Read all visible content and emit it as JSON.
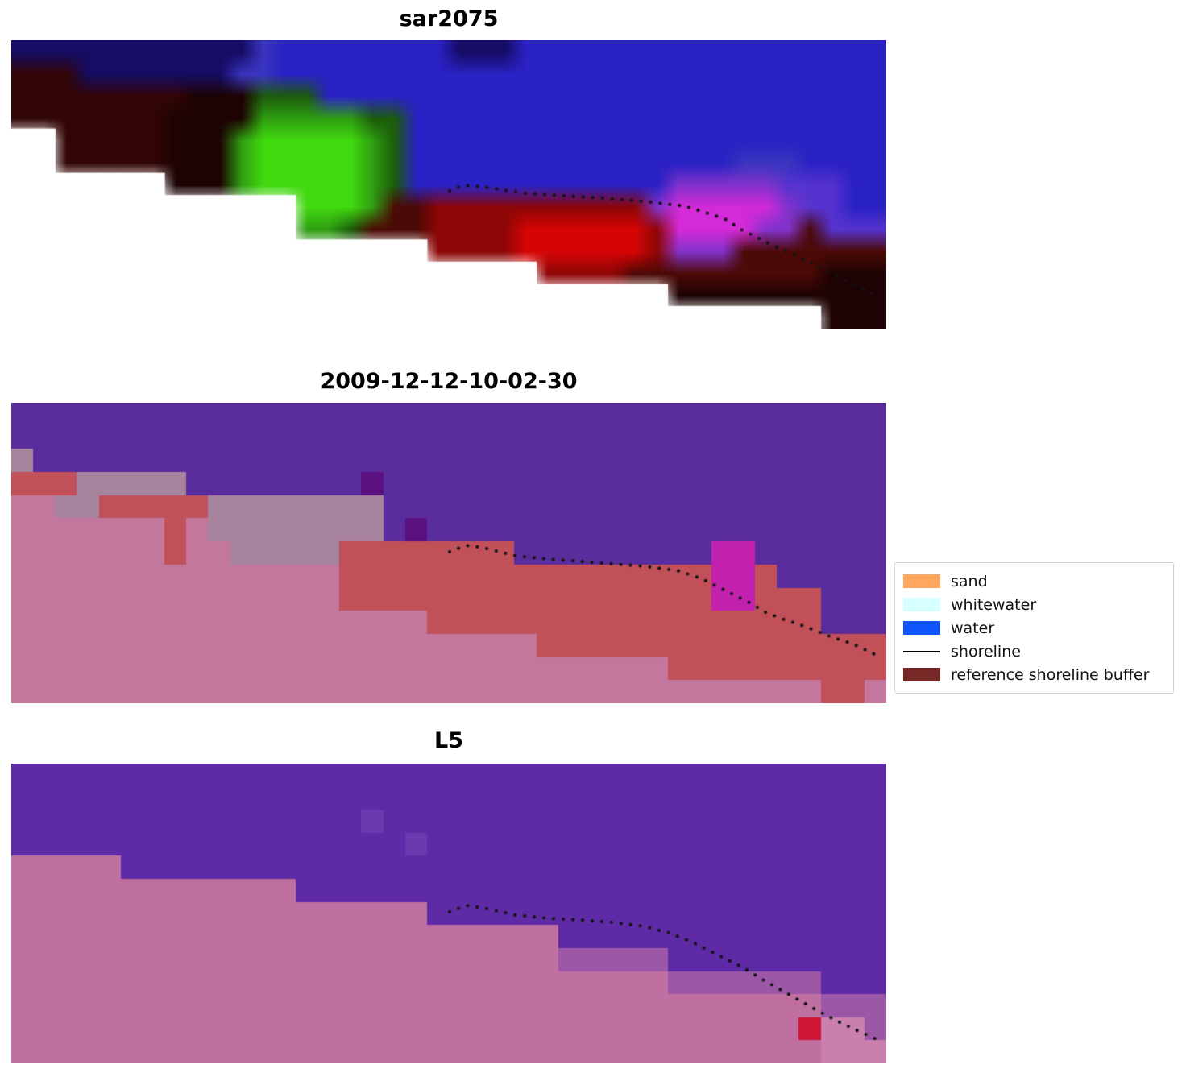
{
  "figure": {
    "background": "#ffffff",
    "shoreline_dot_color": "#141414"
  },
  "chart_data": {
    "type": "heatmap",
    "description": "Three stacked coastal raster panels: a SAR composite, a classified optical image with shoreline, and an L5 satellite image. A dotted black reference shoreline crosses each panel.",
    "panels": [
      {
        "title": "sar2075",
        "smooth": true,
        "palette": {
          "N": "#150c63",
          "B": "#2a22c4",
          "b": "#3a35c0",
          "K": "#330606",
          "k": "#1d0303",
          "G": "#41d90f",
          "g": "#2f9e12",
          "h": "#1c5c0c",
          "R": "#d60505",
          "r": "#8e0606",
          "q": "#4c0a06",
          "M": "#d42ad8",
          "m": "#8233cc",
          "v": "#5633cf",
          "W": "#ffffff"
        },
        "grid": [
          "NNNNNNNNNNNbBBBBBBBBNNNBBBBBBBBBBBBBBBBB",
          "KKKNNNNNNNbbBBBBBBBBBBBBBBBBBBBBBBBBBBBB",
          "KKKKKKKKkkkhhhBBBBBBBBBBBBBBBBBBBBBBBBBB",
          "KKKKKKKkkkkggggghhBBBBBBBBBBBBBBBBBBBBBB",
          "WWKKKKKkkkgGGGGGghBBBBBBBBBBBBBBBBBBBBBB",
          "WWKKKKKkkkgGGGGGghBBBBBBBBBBBBBBBbbbBBBB",
          "WWWWWWWkkkgGGGGGghBBBBBBBBBBBBmmmmmvvvBB",
          "WWWWWWWWWWWWWGGGgqqrrrrrrrrrrmMMMMMmvvBB",
          "WWWWWWWWWWWWWgghqqqrrrrRRRRRRrMMMMmmqvvv",
          "WWWWWWWWWWWWWWWWWWWrrrrRRRRRRrmmmqqqqqqq",
          "WWWWWWWWWWWWWWWWWWWWWWWWrrrrqqqqqqqqqkkk",
          "WWWWWWWWWWWWWWWWWWWWWWWWWWWWWWkkkkkkkkkk",
          "WWWWWWWWWWWWWWWWWWWWWWWWWWWWWWWWWWWWWkkk"
        ],
        "shoreline": [
          [
            544,
            187
          ],
          [
            561,
            180
          ],
          [
            586,
            182
          ],
          [
            636,
            190
          ],
          [
            686,
            193
          ],
          [
            736,
            196
          ],
          [
            786,
            200
          ],
          [
            836,
            206
          ],
          [
            856,
            212
          ],
          [
            886,
            222
          ],
          [
            906,
            235
          ],
          [
            926,
            245
          ],
          [
            946,
            255
          ],
          [
            976,
            268
          ],
          [
            1006,
            283
          ],
          [
            1036,
            298
          ],
          [
            1061,
            310
          ],
          [
            1076,
            318
          ]
        ]
      },
      {
        "title": "2009-12-12-10-02-30",
        "smooth": false,
        "palette": {
          "U": "#5a2d9c",
          "P": "#c3779d",
          "G": "#a8839e",
          "R": "#c25059",
          "M": "#c221ae",
          "D": "#5c1180",
          "W": "#ffffff"
        },
        "grid": [
          "UUUUUUUUUUUUUUUUUUUUUUUUUUUUUUUUUUUUUUUU",
          "UUUUUUUUUUUUUUUUUUUUUUUUUUUUUUUUUUUUUUUU",
          "GUUUUUUUUUUUUUUUUUUUUUUUUUUUUUUUUUUUUUUU",
          "RRRGGGGGUUUUUUUUDUUUUUUUUUUUUUUUUUUUUUUU",
          "PPGGRRRRRGGGGGGGGUUUUUUUUUUUUUUUUUUUUUUU",
          "PPPPPPPRPGGGGGGGGUDUUUUUUUUUUUUUUUUUUUUU",
          "PPPPPPPRPPGGGGGRRRRRRRRUUUUUUUUUMMUUUUUU",
          "PPPPPPPPPPPPPPPRRRRRRRRRRRRRRRRRMMRUUUUU",
          "PPPPPPPPPPPPPPPRRRRRRRRRRRRRRRRRMMRRRUUU",
          "PPPPPPPPPPPPPPPPPPPRRRRRRRRRRRRRRRRRRUUU",
          "PPPPPPPPPPPPPPPPPPPPPPPPRRRRRRRRRRRRRRRR",
          "PPPPPPPPPPPPPPPPPPPPPPPPPPPPPPRRRRRRRRRR",
          "PPPPPPPPPPPPPPPPPPPPPPPPPPPPPPPPPPPPPRRP"
        ],
        "shoreline": [
          [
            544,
            185
          ],
          [
            564,
            177
          ],
          [
            586,
            180
          ],
          [
            626,
            190
          ],
          [
            666,
            194
          ],
          [
            706,
            197
          ],
          [
            746,
            200
          ],
          [
            786,
            203
          ],
          [
            826,
            208
          ],
          [
            856,
            218
          ],
          [
            876,
            228
          ],
          [
            896,
            238
          ],
          [
            916,
            248
          ],
          [
            936,
            260
          ],
          [
            956,
            268
          ],
          [
            986,
            278
          ],
          [
            1016,
            290
          ],
          [
            1046,
            300
          ],
          [
            1071,
            312
          ]
        ]
      },
      {
        "title": "L5",
        "smooth": false,
        "palette": {
          "U": "#5e2aa6",
          "u": "#6c39ae",
          "P": "#bf6fa0",
          "p": "#c980ad",
          "m": "#9c58a7",
          "R": "#d01535",
          "W": "#ffffff"
        },
        "grid": [
          "UUUUUUUUUUUUUUUUUUUUUUUUUUUUUUUUUUUUUUUU",
          "UUUUUUUUUUUUUUUUUUUUUUUUUUUUUUUUUUUUUUUU",
          "UUUUUUUUUUUUUUUUuUUUUUUUUUUUUUUUUUUUUUUU",
          "UUUUUUUUUUUUUUUUUUuUUUUUUUUUUUUUUUUUUUUU",
          "PPPPPUUUUUUUUUUUUUUUUUUUUUUUUUUUUUUUUUUU",
          "PPPPPPPPPPPPPUUUUUUUUUUUUUUUUUUUUUUUUUUU",
          "PPPPPPPPPPPPPPPPPPPUUUUUUUUUUUUUUUUUUUUU",
          "PPPPPPPPPPPPPPPPPPPPPPPPPUUUUUUUUUUUUUUU",
          "PPPPPPPPPPPPPPPPPPPPPPPPPmmmmmUUUUUUUUUU",
          "PPPPPPPPPPPPPPPPPPPPPPPPPPPPPPmmmmmmmUUU",
          "PPPPPPPPPPPPPPPPPPPPPPPPPPPPPPPPPPPPPmmm",
          "PPPPPPPPPPPPPPPPPPPPPPPPPPPPPPPPPPPPRppm",
          "PPPPPPPPPPPPPPPPPPPPPPPPPPPPPPPPPPPPPppp"
        ],
        "shoreline": [
          [
            544,
            184
          ],
          [
            564,
            176
          ],
          [
            586,
            179
          ],
          [
            626,
            188
          ],
          [
            666,
            192
          ],
          [
            706,
            194
          ],
          [
            746,
            197
          ],
          [
            786,
            202
          ],
          [
            816,
            210
          ],
          [
            846,
            222
          ],
          [
            876,
            237
          ],
          [
            906,
            252
          ],
          [
            936,
            270
          ],
          [
            966,
            287
          ],
          [
            996,
            304
          ],
          [
            1026,
            320
          ],
          [
            1056,
            334
          ],
          [
            1078,
            344
          ]
        ]
      }
    ],
    "legend": {
      "entries": [
        {
          "label": "sand",
          "color": "#ffa75e",
          "type": "patch"
        },
        {
          "label": "whitewater",
          "color": "#d6ffff",
          "type": "patch"
        },
        {
          "label": "water",
          "color": "#1155ff",
          "type": "patch"
        },
        {
          "label": "shoreline",
          "color": "#000000",
          "type": "line"
        },
        {
          "label": "reference shoreline buffer",
          "color": "#772726",
          "type": "patch"
        }
      ]
    }
  }
}
